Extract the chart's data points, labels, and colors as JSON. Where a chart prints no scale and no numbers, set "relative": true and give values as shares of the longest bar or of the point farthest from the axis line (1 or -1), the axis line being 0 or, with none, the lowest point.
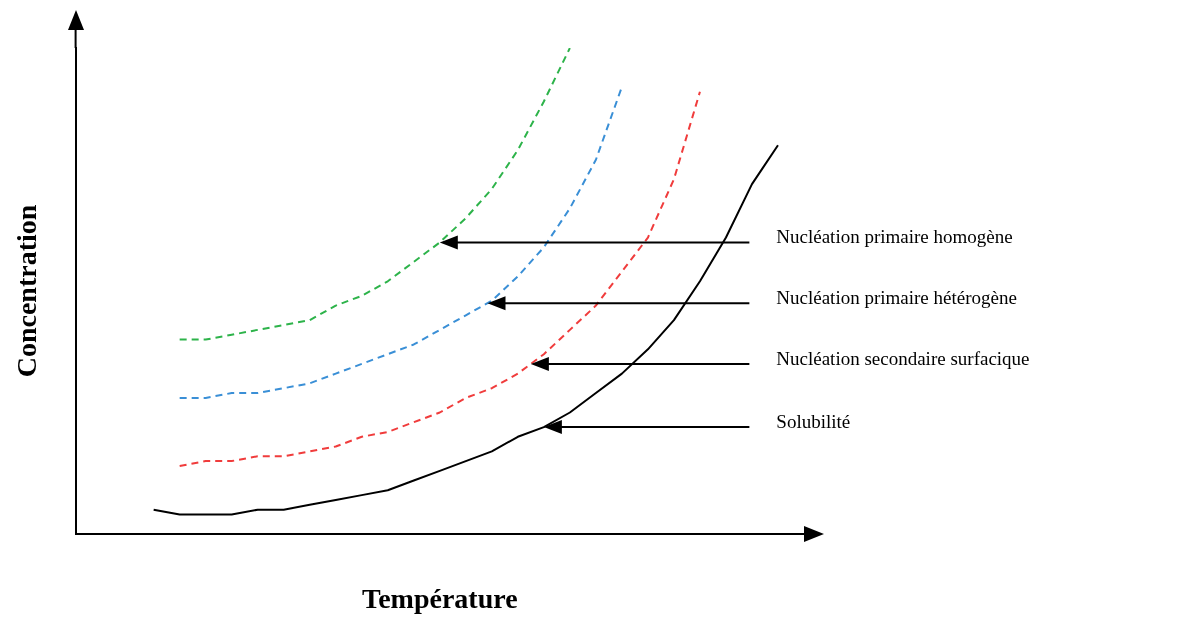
{
  "chart_data": {
    "type": "line",
    "relative": true,
    "xlabel": "Température",
    "ylabel": "Concentration",
    "legend": false,
    "grid": false,
    "marker": "none",
    "categories": [
      null,
      null,
      null,
      null,
      null,
      null,
      null,
      null,
      null,
      null,
      null,
      null,
      null,
      null,
      null,
      null,
      null,
      null,
      null,
      null,
      null,
      null,
      null,
      null,
      null,
      null,
      null,
      null,
      null
    ],
    "series": [
      {
        "name": "Nucléation primaire homogène",
        "color": "#2db34a",
        "line_style": "dashed",
        "values": [
          null,
          null,
          null,
          null,
          0.4,
          0.4,
          0.41,
          0.42,
          0.43,
          0.44,
          0.47,
          0.49,
          0.52,
          0.56,
          0.6,
          0.65,
          0.71,
          0.79,
          0.89,
          1,
          null,
          null,
          null,
          null,
          null,
          null,
          null,
          null,
          null
        ]
      },
      {
        "name": "Nucléation primaire hétérogène",
        "color": "#3a8fd6",
        "line_style": "dashed",
        "values": [
          null,
          null,
          null,
          null,
          0.28,
          0.28,
          0.29,
          0.29,
          0.3,
          0.31,
          0.33,
          0.35,
          0.37,
          0.39,
          0.42,
          0.45,
          0.48,
          0.53,
          0.59,
          0.67,
          0.77,
          0.92,
          null,
          null,
          null,
          null,
          null,
          null,
          null
        ]
      },
      {
        "name": "Nucléation secondaire surfacique",
        "color": "#f03c3c",
        "line_style": "dashed",
        "values": [
          null,
          null,
          null,
          null,
          0.14,
          0.15,
          0.15,
          0.16,
          0.16,
          0.17,
          0.18,
          0.2,
          0.21,
          0.23,
          0.25,
          0.28,
          0.3,
          0.33,
          0.37,
          0.42,
          0.47,
          0.54,
          0.61,
          0.73,
          0.91,
          null,
          null,
          null,
          null
        ]
      },
      {
        "name": "Solubilité",
        "color": "#000000",
        "line_style": "solid",
        "values": [
          null,
          null,
          null,
          0.05,
          0.04,
          0.04,
          0.04,
          0.05,
          0.05,
          0.06,
          0.07,
          0.08,
          0.09,
          0.11,
          0.13,
          0.15,
          0.17,
          0.2,
          0.22,
          0.25,
          0.29,
          0.33,
          0.38,
          0.44,
          0.52,
          0.61,
          0.72,
          0.8,
          null
        ]
      }
    ]
  }
}
